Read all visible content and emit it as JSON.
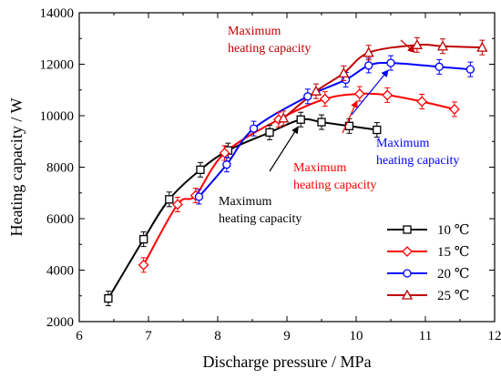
{
  "chart_data": {
    "type": "line",
    "xlabel": "Discharge pressure  / MPa",
    "ylabel": "Heating capacity  / W",
    "xlim": [
      6,
      12
    ],
    "ylim": [
      2000,
      14000
    ],
    "xticks": [
      6,
      7,
      8,
      9,
      10,
      11,
      12
    ],
    "yticks": [
      2000,
      4000,
      6000,
      8000,
      10000,
      12000,
      14000
    ],
    "legend_position": "bottom-right",
    "grid": false,
    "series": [
      {
        "name": "10 ℃",
        "color": "#000000",
        "marker": "square",
        "x": [
          6.42,
          6.93,
          7.3,
          7.75,
          8.15,
          8.75,
          9.2,
          9.5,
          9.9,
          10.3
        ],
        "y": [
          2900,
          5200,
          6750,
          7900,
          8650,
          9350,
          9850,
          9750,
          9600,
          9450
        ]
      },
      {
        "name": "15 ℃",
        "color": "#ff0000",
        "marker": "diamond",
        "x": [
          6.93,
          7.42,
          7.68,
          8.1,
          8.88,
          9.55,
          10.05,
          10.45,
          10.95,
          11.42
        ],
        "y": [
          4200,
          6550,
          6900,
          8550,
          9850,
          10650,
          10850,
          10800,
          10550,
          10250
        ]
      },
      {
        "name": "20 ℃",
        "color": "#0000ff",
        "marker": "circle",
        "x": [
          7.73,
          8.13,
          8.52,
          9.3,
          9.85,
          10.18,
          10.5,
          11.2,
          11.65
        ],
        "y": [
          6850,
          8100,
          9500,
          10750,
          11400,
          11950,
          12050,
          11900,
          11800
        ]
      },
      {
        "name": "25 ℃",
        "color": "#c00000",
        "marker": "triangle",
        "x": [
          8.95,
          9.42,
          9.82,
          10.18,
          10.88,
          11.25,
          11.82
        ],
        "y": [
          9900,
          10950,
          11650,
          12450,
          12750,
          12700,
          12650
        ]
      }
    ],
    "annotations": [
      {
        "text": [
          "Maximum",
          "heating capacity"
        ],
        "color": "#000000",
        "target_x": 9.2,
        "target_y": 9850
      },
      {
        "text": [
          "Maximum",
          "heating capacity"
        ],
        "color": "#ff0000",
        "target_x": 10.05,
        "target_y": 10850
      },
      {
        "text": [
          "Maximum",
          "heating capacity"
        ],
        "color": "#0000ff",
        "target_x": 10.5,
        "target_y": 12050
      },
      {
        "text": [
          "Maximum",
          "heating capacity"
        ],
        "color": "#c00000",
        "target_x": 10.88,
        "target_y": 12750
      }
    ]
  }
}
